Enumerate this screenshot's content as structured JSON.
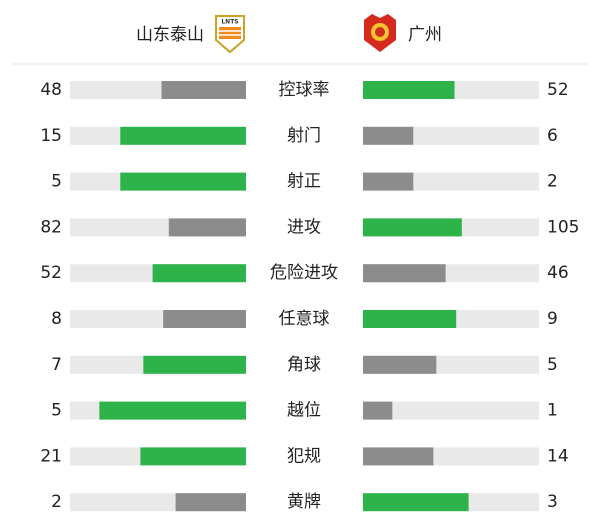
{
  "home": {
    "name": "山东泰山",
    "logo_text": "LNTS"
  },
  "away": {
    "name": "广州"
  },
  "stats": [
    {
      "label": "控球率",
      "home": 48,
      "away": 52
    },
    {
      "label": "射门",
      "home": 15,
      "away": 6
    },
    {
      "label": "射正",
      "home": 5,
      "away": 2
    },
    {
      "label": "进攻",
      "home": 82,
      "away": 105
    },
    {
      "label": "危险进攻",
      "home": 52,
      "away": 46
    },
    {
      "label": "任意球",
      "home": 8,
      "away": 9
    },
    {
      "label": "角球",
      "home": 7,
      "away": 5
    },
    {
      "label": "越位",
      "home": 5,
      "away": 1
    },
    {
      "label": "犯规",
      "home": 21,
      "away": 14
    },
    {
      "label": "黄牌",
      "home": 2,
      "away": 3
    }
  ]
}
